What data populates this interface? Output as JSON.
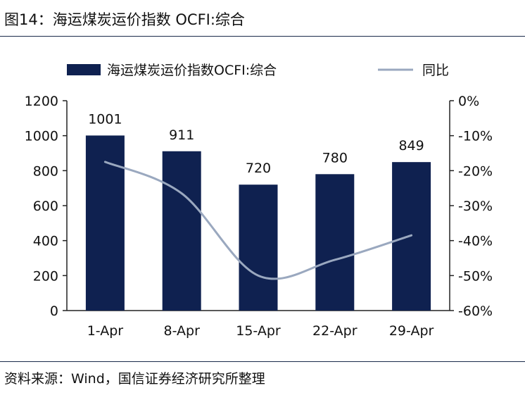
{
  "figure": {
    "title": "图14：海运煤炭运价指数 OCFI:综合",
    "source": "资料来源：Wind，国信证券经济研究所整理"
  },
  "colors": {
    "bar": "#0f2150",
    "line": "#9aa8bf",
    "axis": "#222222",
    "rule": "#1a2a4a"
  },
  "chart_data": {
    "type": "bar",
    "categories": [
      "1-Apr",
      "8-Apr",
      "15-Apr",
      "22-Apr",
      "29-Apr"
    ],
    "series": [
      {
        "name": "海运煤炭运价指数OCFI:综合",
        "type": "bar",
        "axis": "left",
        "values": [
          1001,
          911,
          720,
          780,
          849
        ]
      },
      {
        "name": "同比",
        "type": "line",
        "axis": "right",
        "unit": "%",
        "values": [
          -17.5,
          -26.5,
          -50.0,
          -45.5,
          -38.5
        ]
      }
    ],
    "y_left": {
      "ylim": [
        0,
        1200
      ],
      "ticks": [
        "0",
        "200",
        "400",
        "600",
        "800",
        "1000",
        "1200"
      ]
    },
    "y_right": {
      "ylim": [
        -60,
        0
      ],
      "ticks": [
        "-60%",
        "-50%",
        "-40%",
        "-30%",
        "-20%",
        "-10%",
        "0%"
      ]
    },
    "data_labels": [
      "1001",
      "911",
      "720",
      "780",
      "849"
    ],
    "legend": {
      "position": "top"
    },
    "grid": false
  }
}
